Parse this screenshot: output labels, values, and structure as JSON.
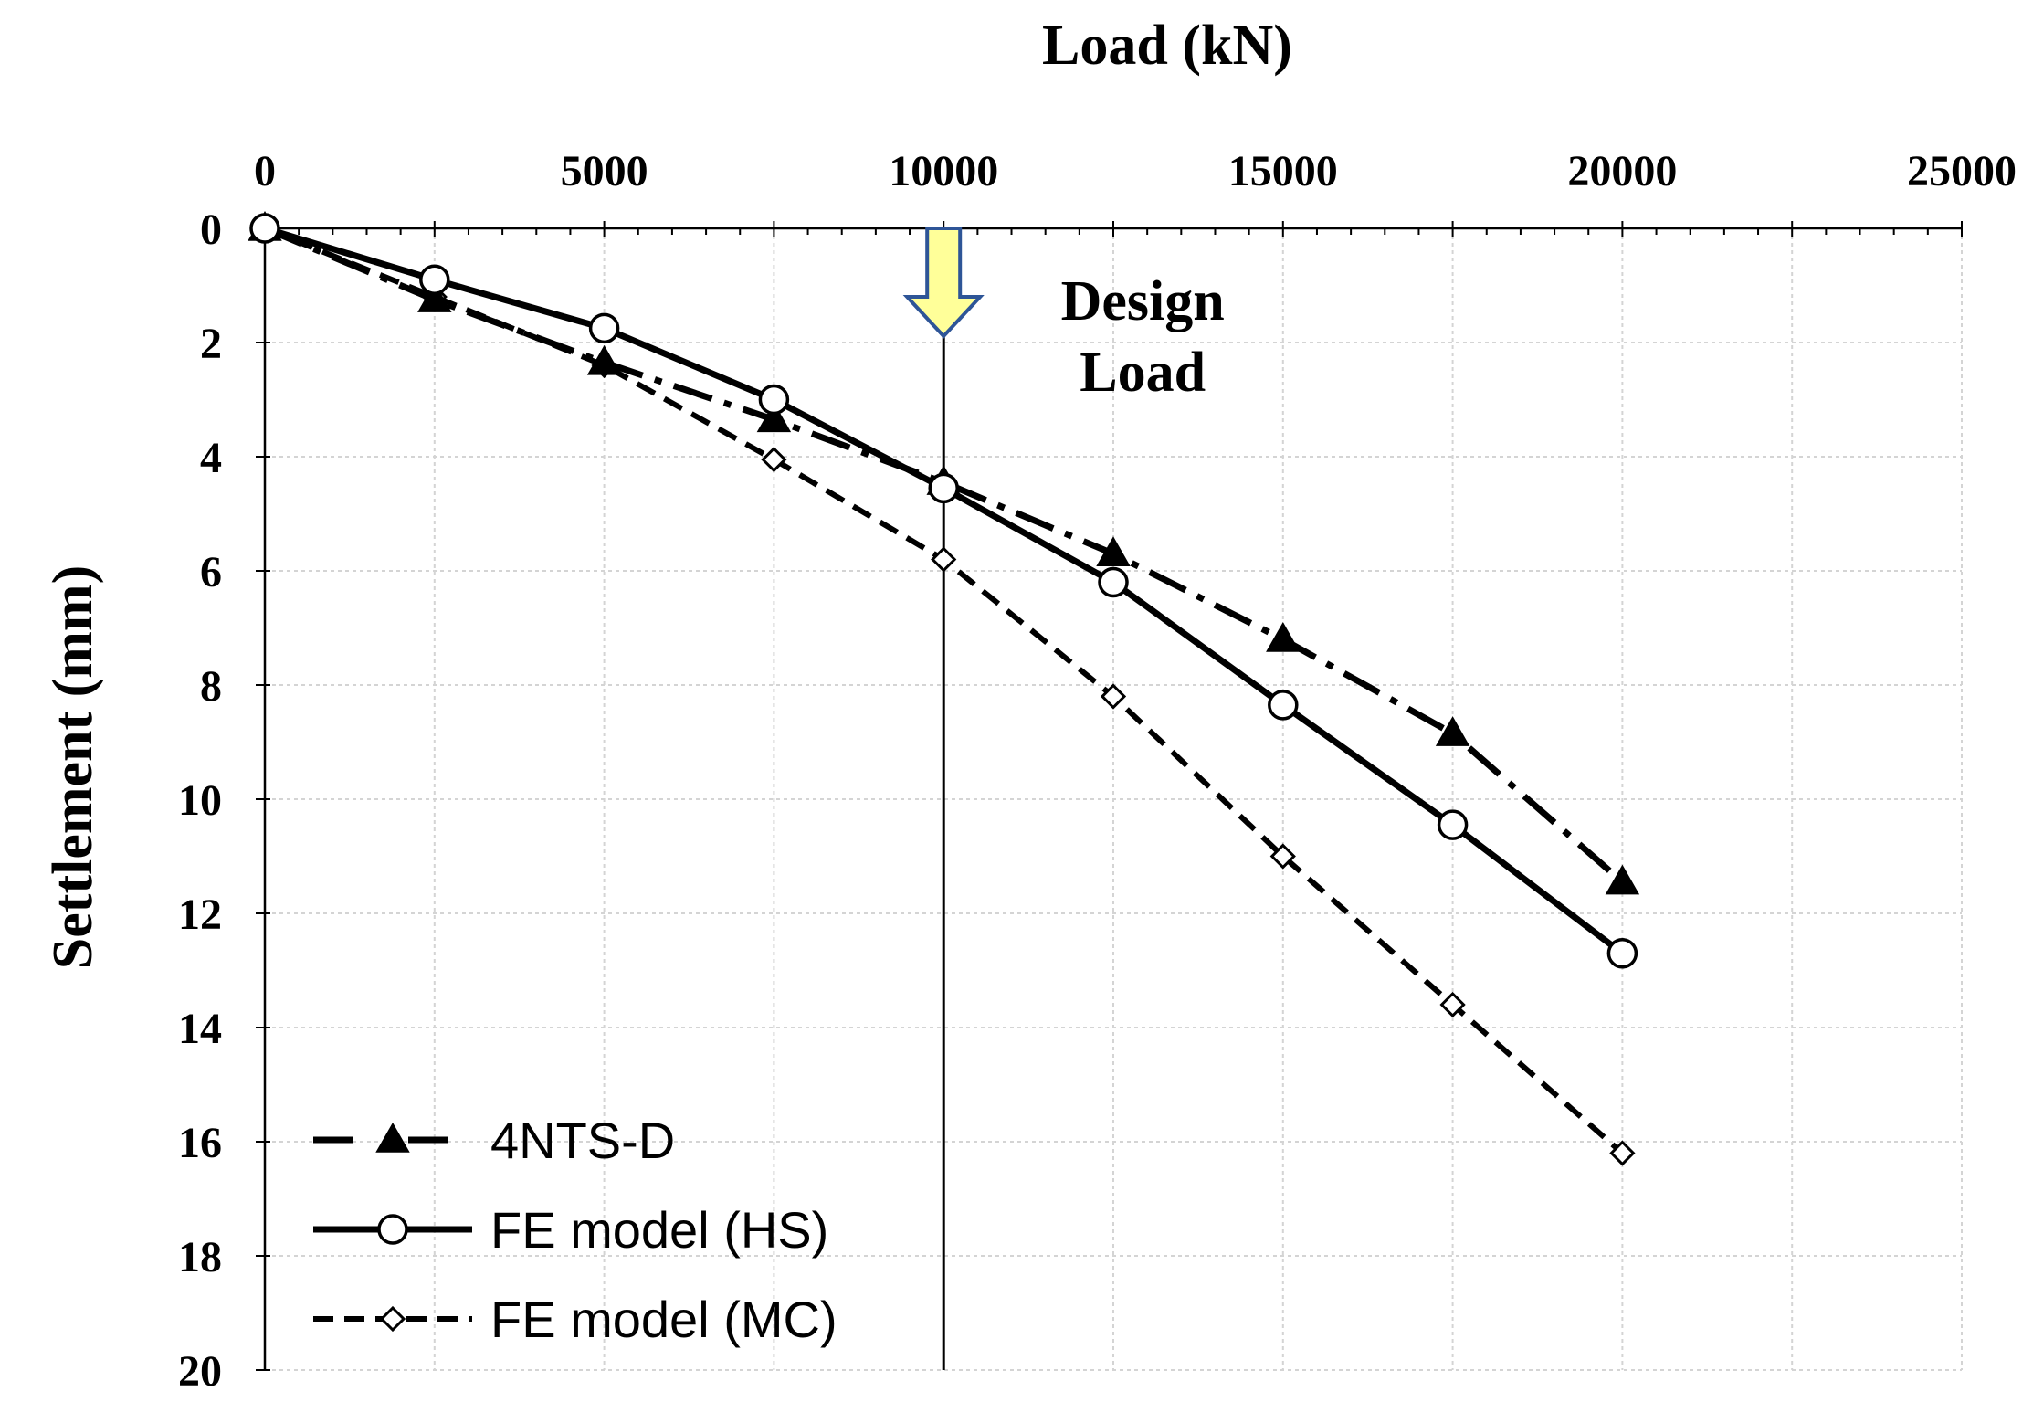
{
  "chart_data": {
    "type": "line",
    "title": "",
    "xlabel": "Load (kN)",
    "ylabel": "Settlement (mm)",
    "xlim": [
      0,
      25000
    ],
    "ylim": [
      0,
      20
    ],
    "y_inverted": true,
    "x_axis_position": "top",
    "x_ticks": [
      0,
      5000,
      10000,
      15000,
      20000,
      25000
    ],
    "y_ticks": [
      0,
      2,
      4,
      6,
      8,
      10,
      12,
      14,
      16,
      18,
      20
    ],
    "x_tick_labels": [
      "0",
      "5000",
      "10000",
      "15000",
      "20000",
      "25000"
    ],
    "y_tick_labels": [
      "0",
      "2",
      "4",
      "6",
      "8",
      "10",
      "12",
      "14",
      "16",
      "18",
      "20"
    ],
    "grid": true,
    "legend_position": "bottom-left",
    "series": [
      {
        "name": "4NTS-D",
        "line_style": "dash-dot",
        "marker": "filled-triangle",
        "x": [
          0,
          2500,
          5000,
          7500,
          10000,
          12500,
          15000,
          17500,
          20000
        ],
        "y": [
          0,
          1.25,
          2.35,
          3.35,
          4.45,
          5.7,
          7.2,
          8.85,
          11.45
        ]
      },
      {
        "name": "FE model (HS)",
        "line_style": "solid",
        "marker": "open-circle",
        "x": [
          0,
          2500,
          5000,
          7500,
          10000,
          12500,
          15000,
          17500,
          20000
        ],
        "y": [
          0,
          0.9,
          1.75,
          3.0,
          4.55,
          6.2,
          8.35,
          10.45,
          12.7
        ]
      },
      {
        "name": "FE model (MC)",
        "line_style": "dashed",
        "marker": "open-diamond",
        "x": [
          0,
          2500,
          5000,
          7500,
          10000,
          12500,
          15000,
          17500,
          20000
        ],
        "y": [
          0,
          1.2,
          2.4,
          4.05,
          5.8,
          8.2,
          11.0,
          13.6,
          16.2
        ]
      }
    ],
    "annotations": [
      {
        "text_line1": "Design",
        "text_line2": "Load",
        "x": 10000,
        "arrow_color": "#ffff99",
        "arrow_edge": "#2e5597"
      }
    ]
  }
}
